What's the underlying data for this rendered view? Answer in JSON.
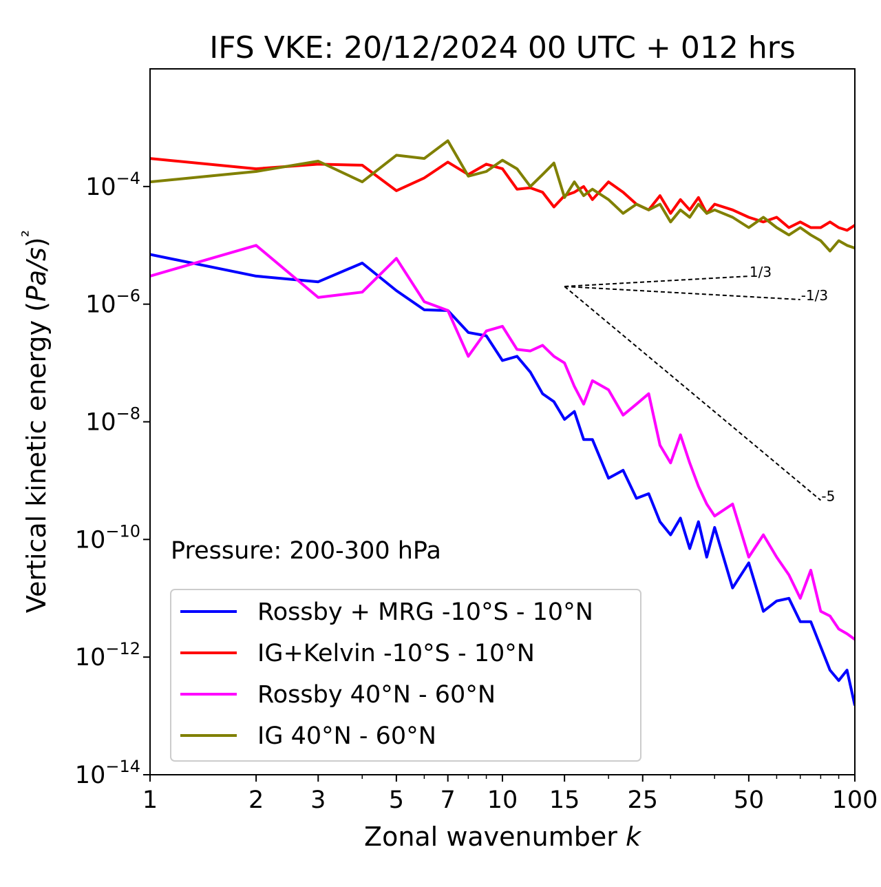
{
  "chart_data": {
    "type": "line",
    "title": "IFS VKE: 20/12/2024 00 UTC + 012 hrs",
    "xlabel": "Zonal wavenumber k",
    "ylabel": "Vertical kinetic energy (Pa/s)²",
    "xscale": "log",
    "yscale": "log",
    "xlim": [
      1,
      100
    ],
    "ylim": [
      1e-14,
      0.01
    ],
    "x_ticks": [
      "1",
      "2",
      "3",
      "5",
      "7",
      "10",
      "15",
      "25",
      "50",
      "100"
    ],
    "y_ticks": [
      {
        "base": "10",
        "exp": "−4"
      },
      {
        "base": "10",
        "exp": "−6"
      },
      {
        "base": "10",
        "exp": "−8"
      },
      {
        "base": "10",
        "exp": "−10"
      },
      {
        "base": "10",
        "exp": "−12"
      },
      {
        "base": "10",
        "exp": "−14"
      }
    ],
    "annotation": "Pressure: 200-300 hPa",
    "legend_position": "lower-left",
    "reference_slopes": [
      {
        "label": "1/3",
        "slope": 0.333,
        "k_start": 15,
        "k_end": 50,
        "e_start": 2e-06
      },
      {
        "label": "-1/3",
        "slope": -0.333,
        "k_start": 15,
        "k_end": 70,
        "e_start": 2e-06
      },
      {
        "label": "-5",
        "slope": -5,
        "k_start": 15,
        "k_end": 80,
        "e_start": 2e-06
      }
    ],
    "series": [
      {
        "name": "Rossby + MRG -10°S - 10°N",
        "color": "#0000ff",
        "x": [
          1,
          2,
          3,
          4,
          5,
          6,
          7,
          8,
          9,
          10,
          11,
          12,
          13,
          14,
          15,
          16,
          17,
          18,
          20,
          22,
          24,
          26,
          28,
          30,
          32,
          34,
          36,
          38,
          40,
          45,
          50,
          55,
          60,
          65,
          70,
          75,
          80,
          85,
          90,
          95,
          100
        ],
        "values": [
          7e-06,
          3e-06,
          2.4e-06,
          5e-06,
          1.7e-06,
          8e-07,
          7.8e-07,
          3.3e-07,
          2.9e-07,
          1.1e-07,
          1.3e-07,
          7e-08,
          3e-08,
          2.2e-08,
          1.1e-08,
          1.5e-08,
          5e-09,
          5e-09,
          1.1e-09,
          1.5e-09,
          5e-10,
          6e-10,
          2e-10,
          1.2e-10,
          2.3e-10,
          7e-11,
          2e-10,
          5e-11,
          1.6e-10,
          1.5e-11,
          4e-11,
          6e-12,
          9e-12,
          1e-11,
          4e-12,
          4e-12,
          1.5e-12,
          6e-13,
          4e-13,
          6e-13,
          1.5e-13
        ]
      },
      {
        "name": "IG+Kelvin -10°S - 10°N",
        "color": "#ff0000",
        "x": [
          1,
          2,
          3,
          4,
          5,
          6,
          7,
          8,
          9,
          10,
          11,
          12,
          13,
          14,
          15,
          16,
          17,
          18,
          20,
          22,
          24,
          26,
          28,
          30,
          32,
          34,
          36,
          38,
          40,
          45,
          50,
          55,
          60,
          65,
          70,
          75,
          80,
          85,
          90,
          95,
          100
        ],
        "values": [
          0.0003,
          0.0002,
          0.00024,
          0.00023,
          8.5e-05,
          0.00014,
          0.00026,
          0.00016,
          0.00024,
          0.0002,
          9e-05,
          9.5e-05,
          8e-05,
          4.5e-05,
          7e-05,
          8e-05,
          0.0001,
          6e-05,
          0.00012,
          8e-05,
          5e-05,
          4e-05,
          7e-05,
          3.5e-05,
          6e-05,
          4e-05,
          6.5e-05,
          3.5e-05,
          5e-05,
          4e-05,
          3e-05,
          2.5e-05,
          3e-05,
          2e-05,
          2.5e-05,
          2e-05,
          2e-05,
          2.5e-05,
          2e-05,
          1.8e-05,
          2.2e-05
        ]
      },
      {
        "name": "Rossby 40°N - 60°N",
        "color": "#ff00ff",
        "x": [
          1,
          2,
          3,
          4,
          5,
          6,
          7,
          8,
          9,
          10,
          11,
          12,
          13,
          14,
          15,
          16,
          17,
          18,
          20,
          22,
          24,
          26,
          28,
          30,
          32,
          34,
          36,
          38,
          40,
          45,
          50,
          55,
          60,
          65,
          70,
          75,
          80,
          85,
          90,
          95,
          100
        ],
        "values": [
          3e-06,
          1e-05,
          1.3e-06,
          1.6e-06,
          6e-06,
          1.1e-06,
          7.8e-07,
          1.3e-07,
          3.5e-07,
          4.2e-07,
          1.7e-07,
          1.6e-07,
          2e-07,
          1.3e-07,
          1e-07,
          4e-08,
          2e-08,
          5e-08,
          3.5e-08,
          1.3e-08,
          2e-08,
          3e-08,
          4e-09,
          2e-09,
          6e-09,
          2e-09,
          8e-10,
          4e-10,
          2.5e-10,
          4e-10,
          5e-11,
          1.2e-10,
          5e-11,
          2.5e-11,
          1e-11,
          3e-11,
          6e-12,
          5e-12,
          3e-12,
          2.5e-12,
          2e-12
        ]
      },
      {
        "name": "IG 40°N - 60°N",
        "color": "#808000",
        "x": [
          1,
          2,
          3,
          4,
          5,
          6,
          7,
          8,
          9,
          10,
          11,
          12,
          13,
          14,
          15,
          16,
          17,
          18,
          20,
          22,
          24,
          26,
          28,
          30,
          32,
          34,
          36,
          38,
          40,
          45,
          50,
          55,
          60,
          65,
          70,
          75,
          80,
          85,
          90,
          95,
          100
        ],
        "values": [
          0.00012,
          0.00018,
          0.00027,
          0.00012,
          0.00034,
          0.0003,
          0.0006,
          0.00015,
          0.00018,
          0.00028,
          0.0002,
          0.0001,
          0.00016,
          0.00025,
          6.5e-05,
          0.00012,
          7e-05,
          9e-05,
          6e-05,
          3.5e-05,
          5e-05,
          4e-05,
          5e-05,
          2.5e-05,
          4e-05,
          3e-05,
          5e-05,
          3.5e-05,
          4e-05,
          3e-05,
          2e-05,
          3e-05,
          2e-05,
          1.5e-05,
          2e-05,
          1.5e-05,
          1.2e-05,
          8e-06,
          1.2e-05,
          1e-05,
          9e-06
        ]
      }
    ]
  }
}
